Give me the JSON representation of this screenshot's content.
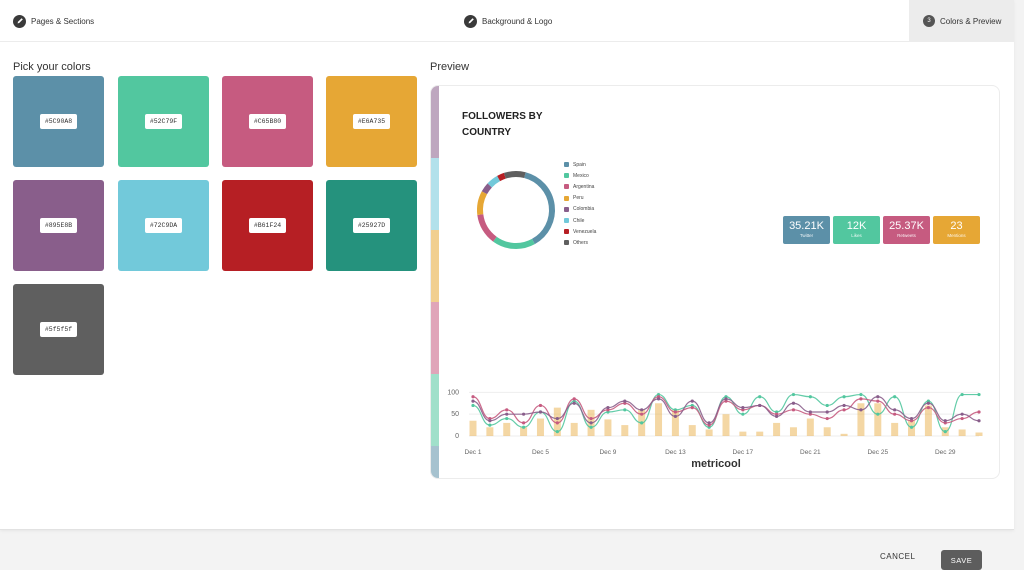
{
  "steps": [
    {
      "label": "Pages & Sections",
      "icon": "pencil-icon"
    },
    {
      "label": "Background & Logo",
      "icon": "pencil-icon"
    },
    {
      "number": "3",
      "label": "Colors & Preview"
    }
  ],
  "picker": {
    "title": "Pick your colors",
    "colors": [
      "#5C90A8",
      "#52C79F",
      "#C65B80",
      "#E6A735",
      "#895E8B",
      "#72C9DA",
      "#B61F24",
      "#25927D",
      "#5f5f5f"
    ]
  },
  "preview": {
    "title": "Preview",
    "chart_title": "FOLLOWERS BY COUNTRY",
    "legend": [
      "Spain",
      "Mexico",
      "Argentina",
      "Peru",
      "Colombia",
      "Chile",
      "Venezuela",
      "Others"
    ],
    "stats": [
      {
        "value": "35.21K",
        "label": "Twitter"
      },
      {
        "value": "12K",
        "label": "Likes"
      },
      {
        "value": "25.37K",
        "label": "Retweets"
      },
      {
        "value": "23",
        "label": "Mentions"
      }
    ],
    "brand": "metricool"
  },
  "chart_data": [
    {
      "type": "pie",
      "title": "FOLLOWERS BY COUNTRY",
      "categories": [
        "Spain",
        "Mexico",
        "Argentina",
        "Peru",
        "Colombia",
        "Chile",
        "Venezuela",
        "Others"
      ],
      "values": [
        38,
        18,
        13,
        10,
        4,
        5,
        3,
        9
      ],
      "donut": true,
      "legend_position": "right"
    },
    {
      "type": "line",
      "x": [
        "Dec 1",
        "Dec 2",
        "Dec 3",
        "Dec 4",
        "Dec 5",
        "Dec 6",
        "Dec 7",
        "Dec 8",
        "Dec 9",
        "Dec 10",
        "Dec 11",
        "Dec 12",
        "Dec 13",
        "Dec 14",
        "Dec 15",
        "Dec 16",
        "Dec 17",
        "Dec 18",
        "Dec 19",
        "Dec 20",
        "Dec 21",
        "Dec 22",
        "Dec 23",
        "Dec 24",
        "Dec 25",
        "Dec 26",
        "Dec 27",
        "Dec 28",
        "Dec 29",
        "Dec 30",
        "Dec 31"
      ],
      "xticks": [
        "Dec 1",
        "Dec 5",
        "Dec 9",
        "Dec 13",
        "Dec 17",
        "Dec 21",
        "Dec 25",
        "Dec 29"
      ],
      "yticks": [
        0,
        50,
        100
      ],
      "ylim": [
        0,
        110
      ],
      "series": [
        {
          "values": [
            35,
            20,
            30,
            20,
            40,
            65,
            30,
            60,
            38,
            25,
            60,
            75,
            60,
            25,
            15,
            50,
            10,
            10,
            30,
            20,
            40,
            20,
            5,
            75,
            75,
            30,
            35,
            70,
            20,
            15,
            8
          ]
        },
        {
          "values": [
            70,
            25,
            40,
            20,
            55,
            10,
            80,
            20,
            55,
            60,
            30,
            95,
            60,
            70,
            20,
            90,
            50,
            90,
            55,
            95,
            90,
            70,
            90,
            95,
            50,
            90,
            20,
            80,
            10,
            95,
            95
          ]
        },
        {
          "values": [
            90,
            40,
            60,
            30,
            70,
            30,
            85,
            40,
            60,
            75,
            50,
            90,
            55,
            65,
            25,
            80,
            60,
            70,
            50,
            60,
            50,
            40,
            60,
            85,
            80,
            50,
            35,
            65,
            30,
            40,
            55
          ]
        },
        {
          "values": [
            80,
            35,
            50,
            50,
            55,
            40,
            75,
            30,
            65,
            80,
            60,
            85,
            45,
            80,
            30,
            85,
            65,
            70,
            45,
            75,
            55,
            55,
            70,
            60,
            90,
            60,
            40,
            75,
            35,
            50,
            35
          ]
        }
      ]
    }
  ]
}
